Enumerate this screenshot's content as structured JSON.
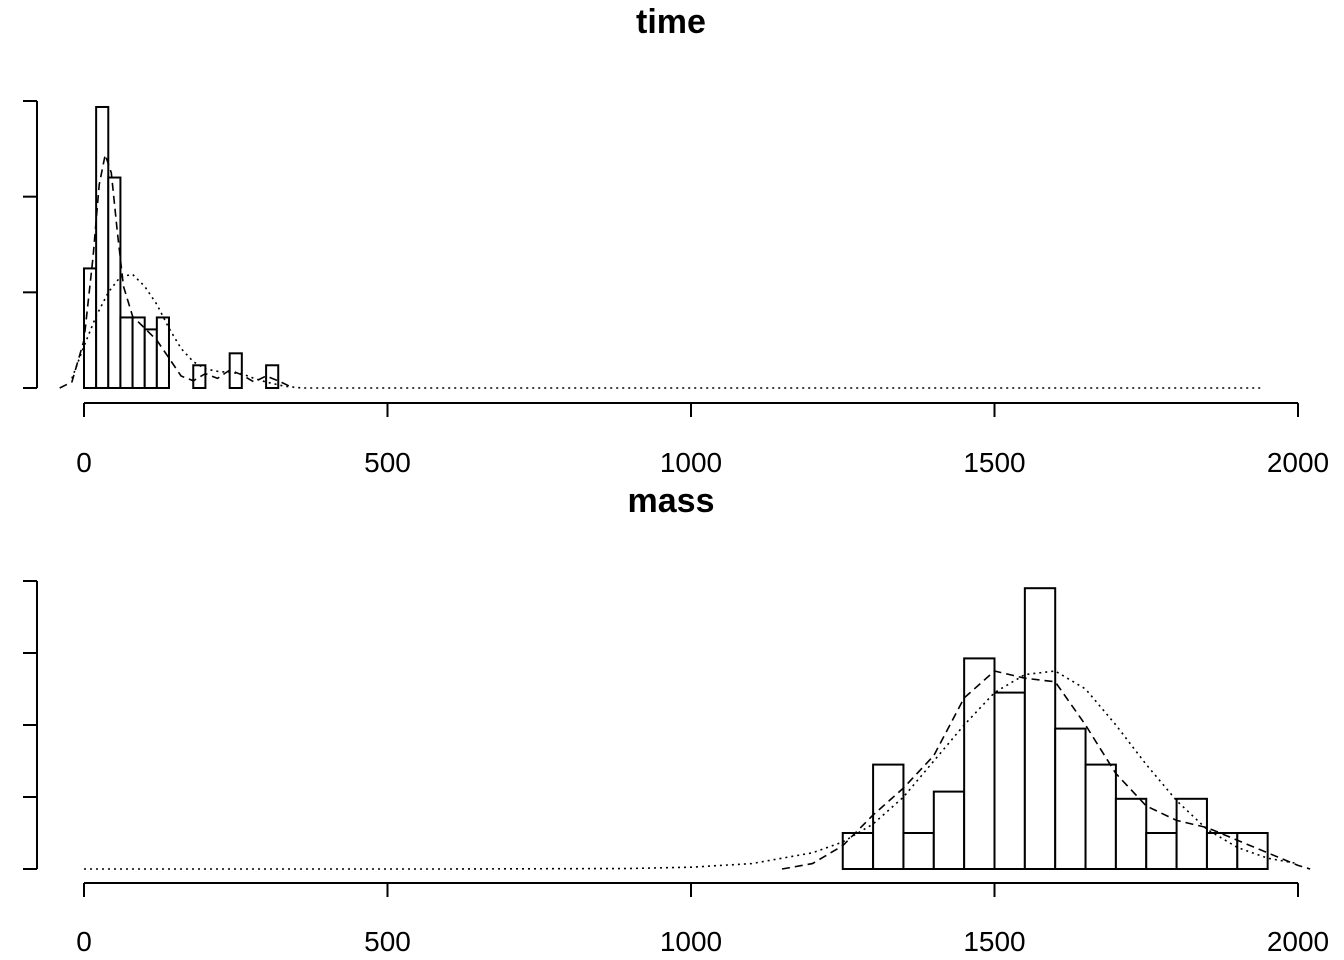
{
  "chart_data": [
    {
      "type": "histogram",
      "title": "time",
      "xlim": [
        0,
        2000
      ],
      "x_ticks": [
        0,
        500,
        1000,
        1500,
        2000
      ],
      "ylim": [
        0,
        24
      ],
      "y_ticks": [
        0,
        8,
        16,
        24
      ],
      "y_tick_labels_shown": false,
      "bin_width": 20,
      "bins": [
        {
          "x0": 0,
          "x1": 20,
          "count": 10
        },
        {
          "x0": 20,
          "x1": 40,
          "count": 23.5
        },
        {
          "x0": 40,
          "x1": 60,
          "count": 17.6
        },
        {
          "x0": 60,
          "x1": 80,
          "count": 5.9
        },
        {
          "x0": 80,
          "x1": 100,
          "count": 5.9
        },
        {
          "x0": 100,
          "x1": 120,
          "count": 4.9
        },
        {
          "x0": 120,
          "x1": 140,
          "count": 5.9
        },
        {
          "x0": 180,
          "x1": 200,
          "count": 1.9
        },
        {
          "x0": 240,
          "x1": 260,
          "count": 2.9
        },
        {
          "x0": 300,
          "x1": 320,
          "count": 1.9
        }
      ],
      "density_dashed": [
        [
          -40,
          0
        ],
        [
          -20,
          0.5
        ],
        [
          0,
          4
        ],
        [
          15,
          11
        ],
        [
          25,
          17
        ],
        [
          35,
          19.5
        ],
        [
          45,
          18
        ],
        [
          55,
          13
        ],
        [
          65,
          8.5
        ],
        [
          80,
          6
        ],
        [
          100,
          5
        ],
        [
          120,
          4
        ],
        [
          140,
          2.5
        ],
        [
          160,
          1
        ],
        [
          180,
          0.6
        ],
        [
          200,
          1.2
        ],
        [
          220,
          0.8
        ],
        [
          240,
          1.5
        ],
        [
          260,
          1.1
        ],
        [
          280,
          0.5
        ],
        [
          300,
          1
        ],
        [
          320,
          0.6
        ],
        [
          345,
          0
        ]
      ],
      "density_dotted": [
        [
          -20,
          0.8
        ],
        [
          0,
          3.5
        ],
        [
          20,
          6
        ],
        [
          40,
          8
        ],
        [
          60,
          9.3
        ],
        [
          80,
          9.5
        ],
        [
          100,
          8.5
        ],
        [
          120,
          7
        ],
        [
          140,
          5
        ],
        [
          160,
          3.3
        ],
        [
          180,
          2.2
        ],
        [
          200,
          1.6
        ],
        [
          220,
          1.4
        ],
        [
          240,
          1.3
        ],
        [
          260,
          1.2
        ],
        [
          280,
          0.8
        ],
        [
          300,
          0.5
        ],
        [
          330,
          0.15
        ],
        [
          360,
          0
        ],
        [
          1940,
          0
        ]
      ]
    },
    {
      "type": "histogram",
      "title": "mass",
      "xlim": [
        0,
        2000
      ],
      "x_ticks": [
        0,
        500,
        1000,
        1500,
        2000
      ],
      "ylim": [
        0,
        16
      ],
      "y_ticks": [
        0,
        4,
        8,
        12,
        16
      ],
      "y_tick_labels_shown": false,
      "bin_width": 50,
      "bins": [
        {
          "x0": 1250,
          "x1": 1300,
          "count": 2
        },
        {
          "x0": 1300,
          "x1": 1350,
          "count": 5.8
        },
        {
          "x0": 1350,
          "x1": 1400,
          "count": 2
        },
        {
          "x0": 1400,
          "x1": 1450,
          "count": 4.3
        },
        {
          "x0": 1450,
          "x1": 1500,
          "count": 11.7
        },
        {
          "x0": 1500,
          "x1": 1550,
          "count": 9.8
        },
        {
          "x0": 1550,
          "x1": 1600,
          "count": 15.6
        },
        {
          "x0": 1600,
          "x1": 1650,
          "count": 7.8
        },
        {
          "x0": 1650,
          "x1": 1700,
          "count": 5.8
        },
        {
          "x0": 1700,
          "x1": 1750,
          "count": 3.9
        },
        {
          "x0": 1750,
          "x1": 1800,
          "count": 2
        },
        {
          "x0": 1800,
          "x1": 1850,
          "count": 3.9
        },
        {
          "x0": 1850,
          "x1": 1900,
          "count": 2
        },
        {
          "x0": 1900,
          "x1": 1950,
          "count": 2
        }
      ],
      "density_dashed": [
        [
          1150,
          0
        ],
        [
          1200,
          0.3
        ],
        [
          1250,
          1.3
        ],
        [
          1300,
          3
        ],
        [
          1350,
          4.5
        ],
        [
          1400,
          6.3
        ],
        [
          1450,
          9.5
        ],
        [
          1500,
          11
        ],
        [
          1550,
          10.6
        ],
        [
          1600,
          10.4
        ],
        [
          1650,
          8
        ],
        [
          1700,
          5.3
        ],
        [
          1750,
          3.5
        ],
        [
          1800,
          2.7
        ],
        [
          1850,
          2.3
        ],
        [
          1900,
          1.6
        ],
        [
          1950,
          0.9
        ],
        [
          2000,
          0.2
        ],
        [
          2020,
          0
        ]
      ],
      "density_dotted": [
        [
          0,
          0
        ],
        [
          600,
          0
        ],
        [
          900,
          0.03
        ],
        [
          1000,
          0.1
        ],
        [
          1100,
          0.3
        ],
        [
          1200,
          0.9
        ],
        [
          1250,
          1.5
        ],
        [
          1300,
          2.5
        ],
        [
          1350,
          4
        ],
        [
          1400,
          6
        ],
        [
          1450,
          8
        ],
        [
          1500,
          9.8
        ],
        [
          1550,
          10.8
        ],
        [
          1600,
          11
        ],
        [
          1650,
          10
        ],
        [
          1700,
          8
        ],
        [
          1750,
          5.8
        ],
        [
          1800,
          3.8
        ],
        [
          1850,
          2.2
        ],
        [
          1900,
          1.2
        ],
        [
          1950,
          0.6
        ],
        [
          2000,
          0.3
        ]
      ]
    }
  ]
}
